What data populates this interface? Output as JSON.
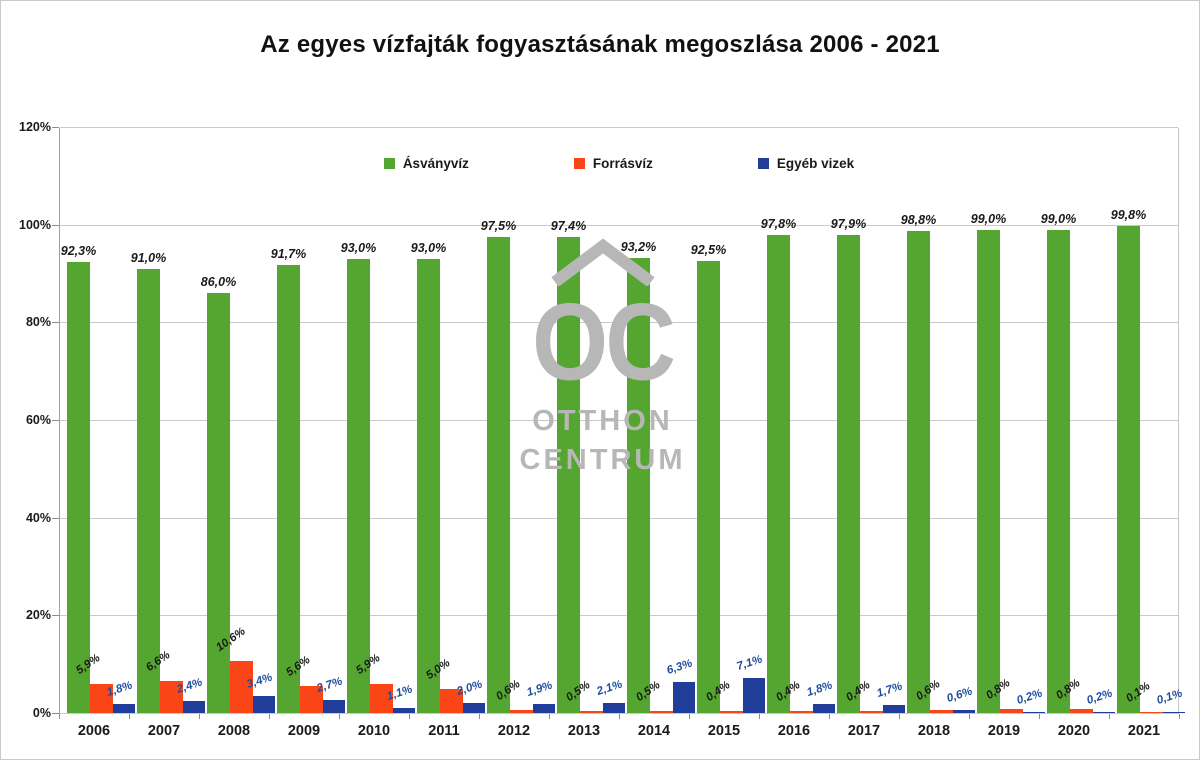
{
  "watermark": {
    "monogram": "OC",
    "line1": "OTTHON",
    "line2": "CENTRUM"
  },
  "chart_data": {
    "type": "bar",
    "title": "Az egyes vízfajták fogyasztásának megoszlása 2006 - 2021",
    "categories": [
      "2006",
      "2007",
      "2008",
      "2009",
      "2010",
      "2011",
      "2012",
      "2013",
      "2014",
      "2015",
      "2016",
      "2017",
      "2018",
      "2019",
      "2020",
      "2021"
    ],
    "y_ticks": [
      "0%",
      "20%",
      "40%",
      "60%",
      "80%",
      "100%",
      "120%"
    ],
    "ylim": [
      0,
      120
    ],
    "grid": true,
    "legend_position": "top-center-inside",
    "series": [
      {
        "name": "Ásványvíz",
        "color": "#55A630",
        "values": [
          92.3,
          91.0,
          86.0,
          91.7,
          93.0,
          93.0,
          97.5,
          97.4,
          93.2,
          92.5,
          97.8,
          97.9,
          98.8,
          99.0,
          99.0,
          99.8
        ],
        "labels": [
          "92,3%",
          "91,0%",
          "86,0%",
          "91,7%",
          "93,0%",
          "93,0%",
          "97,5%",
          "97,4%",
          "93,2%",
          "92,5%",
          "97,8%",
          "97,9%",
          "98,8%",
          "99,0%",
          "99,0%",
          "99,8%"
        ],
        "label_color": "#1a1a1a"
      },
      {
        "name": "Forrásvíz",
        "color": "#FA4616",
        "values": [
          5.9,
          6.6,
          10.6,
          5.6,
          5.9,
          5.0,
          0.6,
          0.5,
          0.5,
          0.4,
          0.4,
          0.4,
          0.6,
          0.8,
          0.8,
          0.1
        ],
        "labels": [
          "5,9%",
          "6,6%",
          "10,6%",
          "5,6%",
          "5,9%",
          "5,0%",
          "0,6%",
          "0,5%",
          "0,5%",
          "0,4%",
          "0,4%",
          "0,4%",
          "0,6%",
          "0,8%",
          "0,8%",
          "0,1%"
        ],
        "label_color": "#1a1a1a"
      },
      {
        "name": "Egyéb vizek",
        "color": "#1F3D99",
        "values": [
          1.8,
          2.4,
          3.4,
          2.7,
          1.1,
          2.0,
          1.9,
          2.1,
          6.3,
          7.1,
          1.8,
          1.7,
          0.6,
          0.2,
          0.2,
          0.1
        ],
        "labels": [
          "1,8%",
          "2,4%",
          "3,4%",
          "2,7%",
          "1,1%",
          "2,0%",
          "1,9%",
          "2,1%",
          "6,3%",
          "7,1%",
          "1,8%",
          "1,7%",
          "0,6%",
          "0,2%",
          "0,2%",
          "0,1%"
        ],
        "label_color": "#1F4E9C"
      }
    ]
  }
}
